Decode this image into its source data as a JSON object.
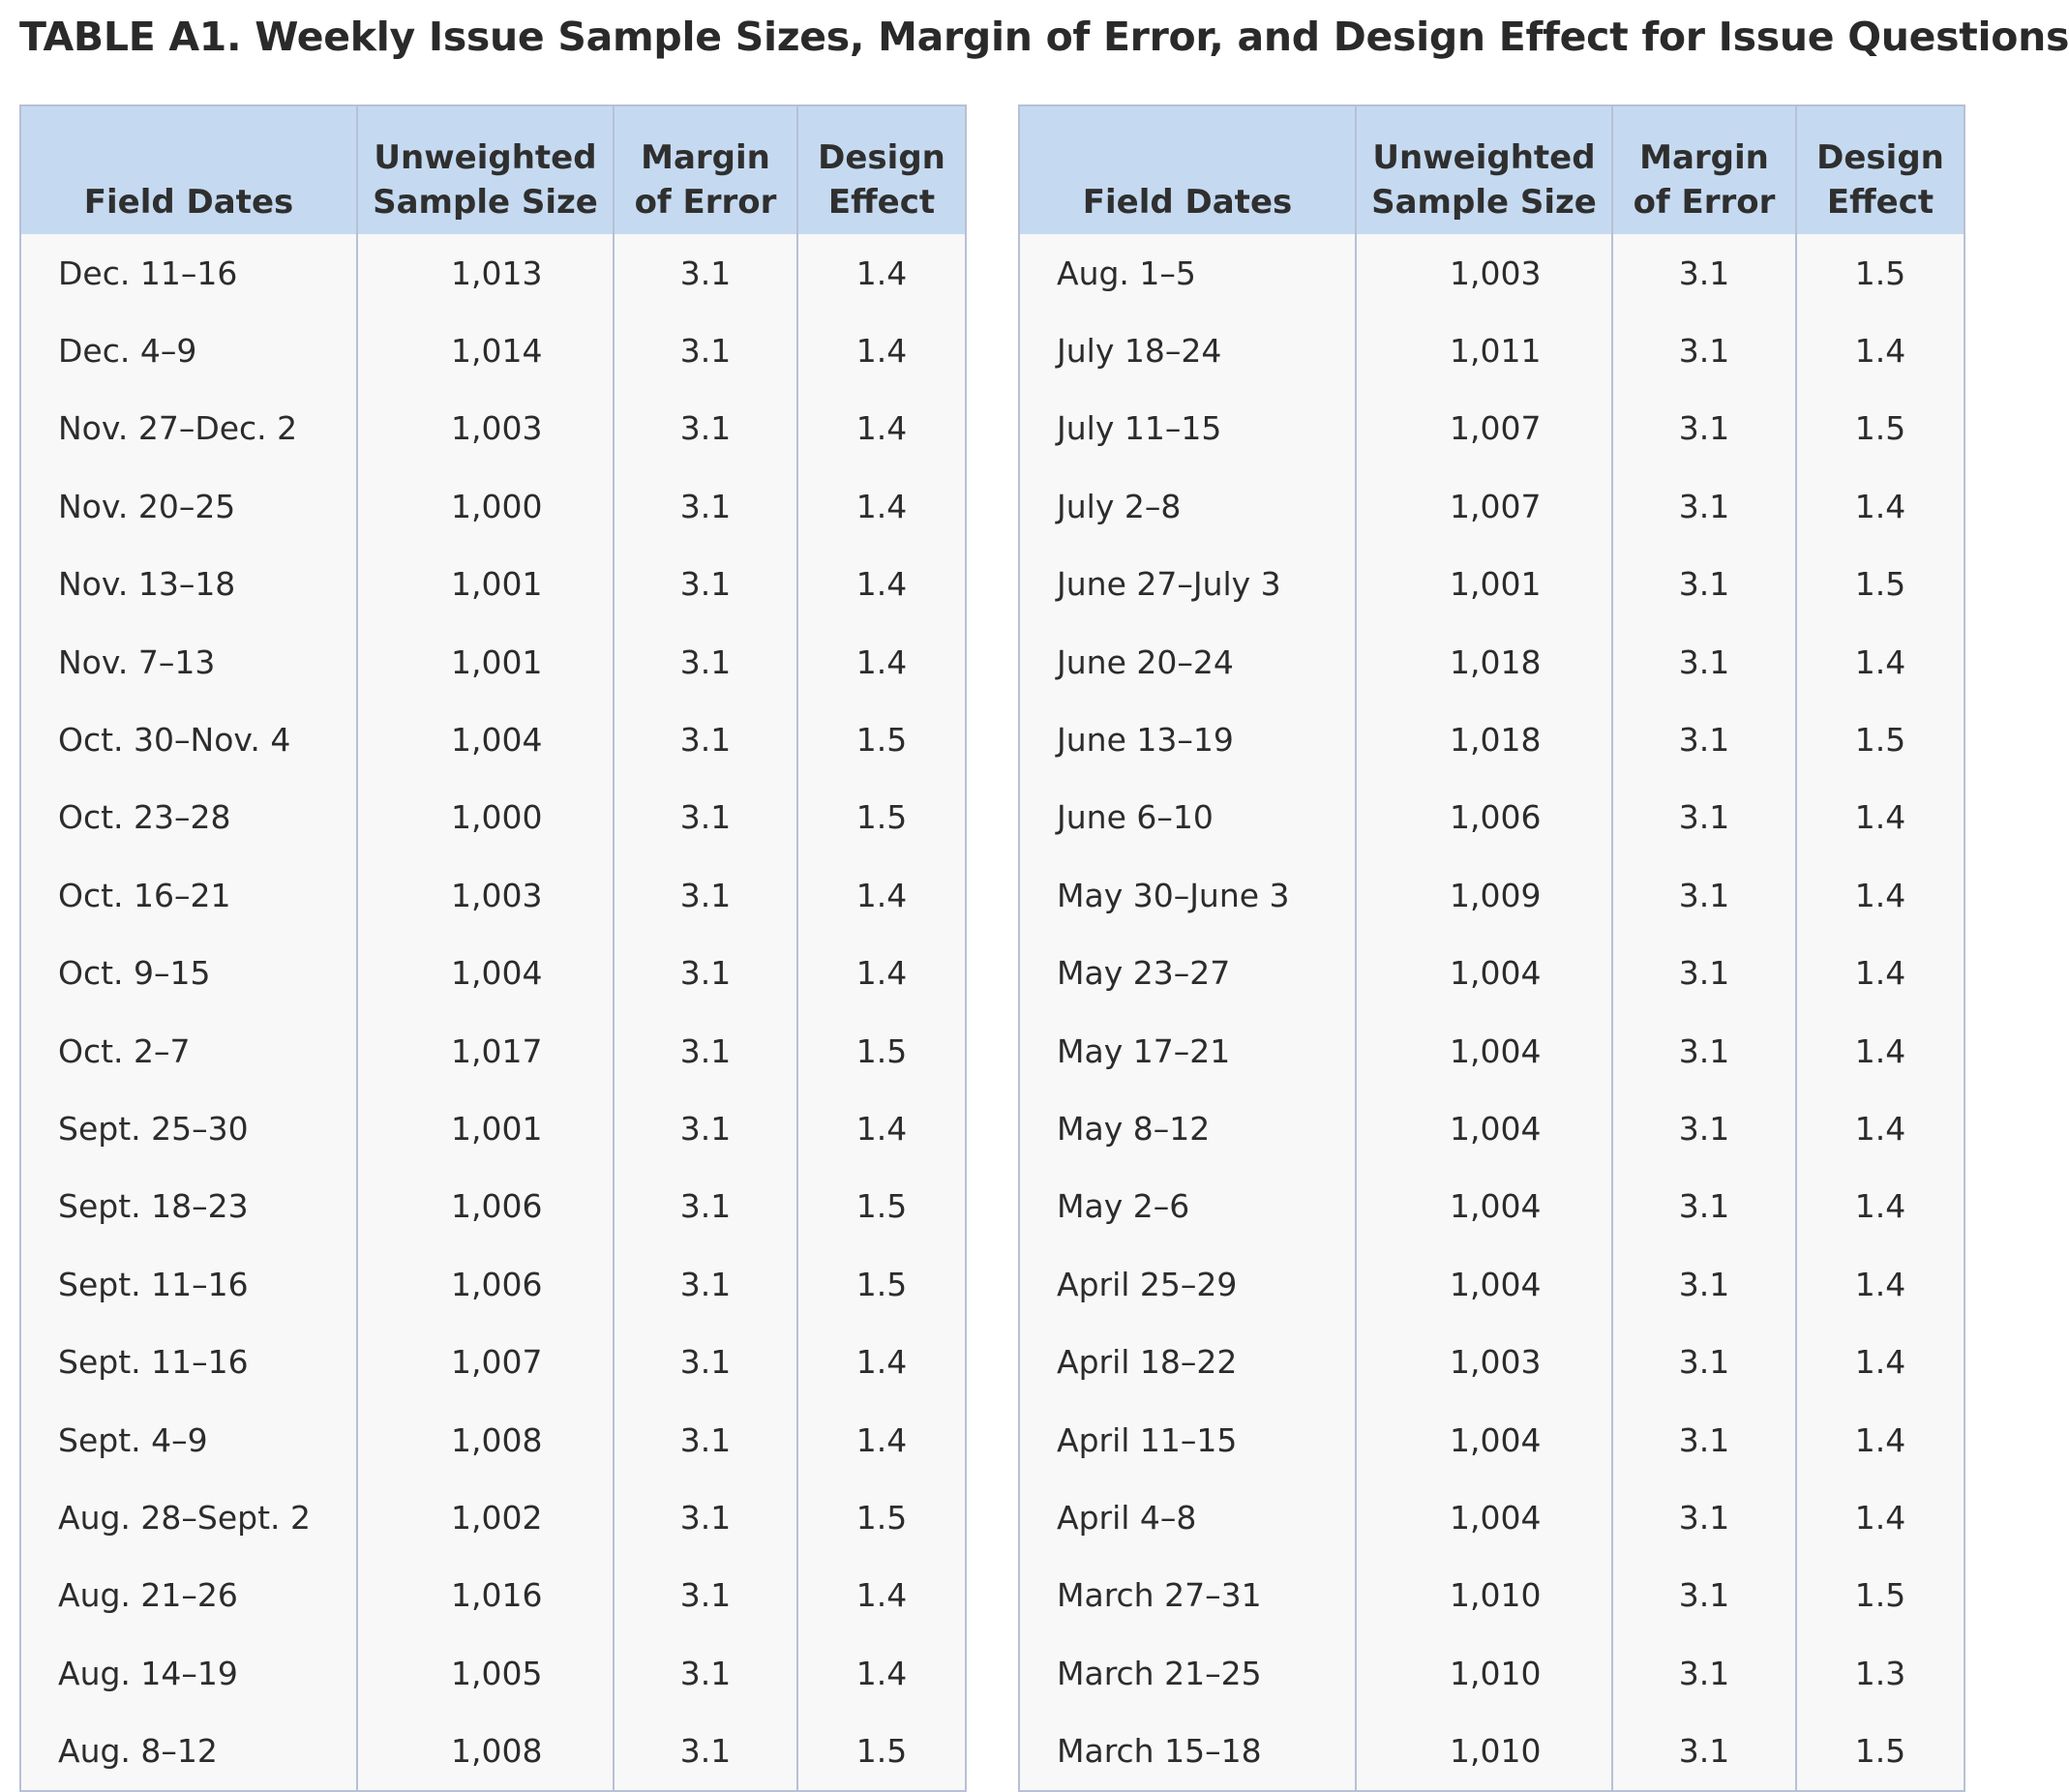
{
  "title": "TABLE A1.  Weekly Issue Sample Sizes, Margin of Error, and Design Effect for Issue Questions",
  "headers": {
    "field_dates": "Field Dates",
    "sample_size_line1": "Unweighted",
    "sample_size_line2": "Sample Size",
    "margin_line1": "Margin",
    "margin_line2": "of Error",
    "design_line1": "Design",
    "design_line2": "Effect"
  },
  "left_rows": [
    {
      "date": "Dec. 11–16",
      "size": "1,013",
      "moe": "3.1",
      "deff": "1.4"
    },
    {
      "date": "Dec. 4–9",
      "size": "1,014",
      "moe": "3.1",
      "deff": "1.4"
    },
    {
      "date": "Nov. 27–Dec. 2",
      "size": "1,003",
      "moe": "3.1",
      "deff": "1.4"
    },
    {
      "date": "Nov. 20–25",
      "size": "1,000",
      "moe": "3.1",
      "deff": "1.4"
    },
    {
      "date": "Nov. 13–18",
      "size": "1,001",
      "moe": "3.1",
      "deff": "1.4"
    },
    {
      "date": "Nov. 7–13",
      "size": "1,001",
      "moe": "3.1",
      "deff": "1.4"
    },
    {
      "date": "Oct. 30–Nov. 4",
      "size": "1,004",
      "moe": "3.1",
      "deff": "1.5"
    },
    {
      "date": "Oct. 23–28",
      "size": "1,000",
      "moe": "3.1",
      "deff": "1.5"
    },
    {
      "date": "Oct. 16–21",
      "size": "1,003",
      "moe": "3.1",
      "deff": "1.4"
    },
    {
      "date": "Oct. 9–15",
      "size": "1,004",
      "moe": "3.1",
      "deff": "1.4"
    },
    {
      "date": "Oct. 2–7",
      "size": "1,017",
      "moe": "3.1",
      "deff": "1.5"
    },
    {
      "date": "Sept. 25–30",
      "size": "1,001",
      "moe": "3.1",
      "deff": "1.4"
    },
    {
      "date": "Sept. 18–23",
      "size": "1,006",
      "moe": "3.1",
      "deff": "1.5"
    },
    {
      "date": "Sept. 11–16",
      "size": "1,006",
      "moe": "3.1",
      "deff": "1.5"
    },
    {
      "date": "Sept. 11–16",
      "size": "1,007",
      "moe": "3.1",
      "deff": "1.4"
    },
    {
      "date": "Sept. 4–9",
      "size": "1,008",
      "moe": "3.1",
      "deff": "1.4"
    },
    {
      "date": "Aug. 28–Sept. 2",
      "size": "1,002",
      "moe": "3.1",
      "deff": "1.5"
    },
    {
      "date": "Aug. 21–26",
      "size": "1,016",
      "moe": "3.1",
      "deff": "1.4"
    },
    {
      "date": "Aug. 14–19",
      "size": "1,005",
      "moe": "3.1",
      "deff": "1.4"
    },
    {
      "date": "Aug. 8–12",
      "size": "1,008",
      "moe": "3.1",
      "deff": "1.5"
    }
  ],
  "right_rows": [
    {
      "date": "Aug. 1–5",
      "size": "1,003",
      "moe": "3.1",
      "deff": "1.5"
    },
    {
      "date": "July 18–24",
      "size": "1,011",
      "moe": "3.1",
      "deff": "1.4"
    },
    {
      "date": "July 11–15",
      "size": "1,007",
      "moe": "3.1",
      "deff": "1.5"
    },
    {
      "date": "July 2–8",
      "size": "1,007",
      "moe": "3.1",
      "deff": "1.4"
    },
    {
      "date": "June 27–July 3",
      "size": "1,001",
      "moe": "3.1",
      "deff": "1.5"
    },
    {
      "date": "June 20–24",
      "size": "1,018",
      "moe": "3.1",
      "deff": "1.4"
    },
    {
      "date": "June 13–19",
      "size": "1,018",
      "moe": "3.1",
      "deff": "1.5"
    },
    {
      "date": "June 6–10",
      "size": "1,006",
      "moe": "3.1",
      "deff": "1.4"
    },
    {
      "date": "May 30–June 3",
      "size": "1,009",
      "moe": "3.1",
      "deff": "1.4"
    },
    {
      "date": "May 23–27",
      "size": "1,004",
      "moe": "3.1",
      "deff": "1.4"
    },
    {
      "date": "May 17–21",
      "size": "1,004",
      "moe": "3.1",
      "deff": "1.4"
    },
    {
      "date": "May 8–12",
      "size": "1,004",
      "moe": "3.1",
      "deff": "1.4"
    },
    {
      "date": "May 2–6",
      "size": "1,004",
      "moe": "3.1",
      "deff": "1.4"
    },
    {
      "date": "April 25–29",
      "size": "1,004",
      "moe": "3.1",
      "deff": "1.4"
    },
    {
      "date": "April 18–22",
      "size": "1,003",
      "moe": "3.1",
      "deff": "1.4"
    },
    {
      "date": "April 11–15",
      "size": "1,004",
      "moe": "3.1",
      "deff": "1.4"
    },
    {
      "date": "April 4–8",
      "size": "1,004",
      "moe": "3.1",
      "deff": "1.4"
    },
    {
      "date": "March 27–31",
      "size": "1,010",
      "moe": "3.1",
      "deff": "1.5"
    },
    {
      "date": "March 21–25",
      "size": "1,010",
      "moe": "3.1",
      "deff": "1.3"
    },
    {
      "date": "March 15–18",
      "size": "1,010",
      "moe": "3.1",
      "deff": "1.5"
    }
  ]
}
